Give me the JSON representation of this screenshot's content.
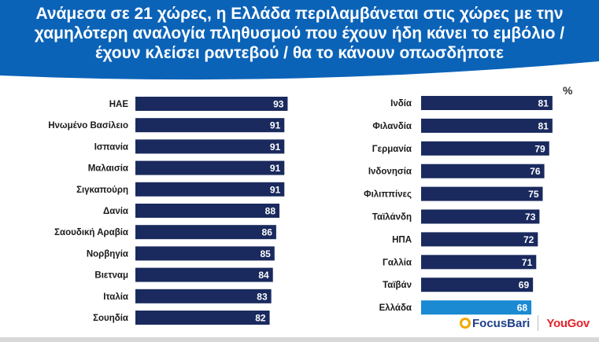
{
  "title": {
    "line1": "Ανάμεσα σε  21 χώρες, η Ελλάδα περιλαμβάνεται στις χώρες με την",
    "line2": "χαμηλότερη αναλογία πληθυσμού που έχουν ήδη κάνει το εμβόλιο /",
    "line3": "έχουν κλείσει ραντεβού / θα το κάνουν οπωσδήποτε"
  },
  "unit_label": "%",
  "logos": {
    "focusbari": "FocusBari",
    "yougov": "YouGov"
  },
  "colors": {
    "header": "#0b63b8",
    "bar": "#1a2a5e",
    "highlight": "#1b8ad3"
  },
  "chart_data": {
    "type": "bar",
    "orientation": "horizontal",
    "panels": [
      {
        "categories": [
          "ΗΑΕ",
          "Ηνωμένο Βασίλειο",
          "Ισπανία",
          "Μαλαισία",
          "Σιγκαπούρη",
          "Δανία",
          "Σαουδική Αραβία",
          "Νορβηγία",
          "Βιετναμ",
          "Ιταλία",
          "Σουηδία"
        ],
        "values": [
          93,
          91,
          91,
          91,
          91,
          88,
          86,
          85,
          84,
          83,
          82
        ]
      },
      {
        "categories": [
          "Ινδία",
          "Φιλανδία",
          "Γερμανία",
          "Ινδονησία",
          "Φιλιππίνες",
          "Ταϊλάνδη",
          "ΗΠΑ",
          "Γαλλία",
          "Ταϊβάν",
          "Ελλάδα"
        ],
        "values": [
          81,
          81,
          79,
          76,
          75,
          73,
          72,
          71,
          69,
          68
        ],
        "highlight": "Ελλάδα"
      }
    ]
  }
}
